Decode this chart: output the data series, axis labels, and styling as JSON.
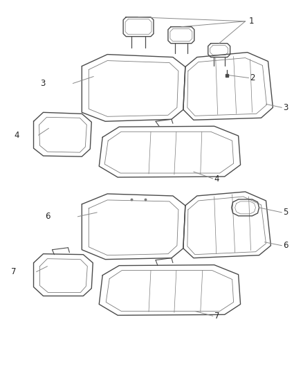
{
  "bg_color": "#ffffff",
  "line_color": "#4a4a4a",
  "inner_color": "#7a7a7a",
  "callout_color": "#888888",
  "label_fontsize": 8.5,
  "label_color": "#222222"
}
